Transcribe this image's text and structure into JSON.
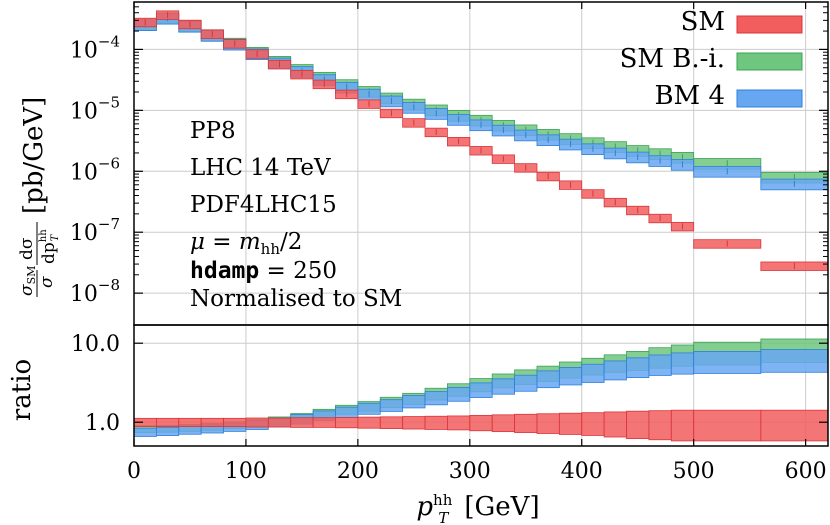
{
  "chart_data": {
    "type": "histogram-band",
    "x": {
      "label_base": "p",
      "label_sub": "T",
      "label_sup": "hh",
      "label_unit": "[GeV]",
      "lim": [
        0,
        620
      ],
      "ticks": [
        0,
        100,
        200,
        300,
        400,
        500,
        600
      ]
    },
    "bin_edges": [
      0,
      20,
      40,
      60,
      80,
      100,
      120,
      140,
      160,
      180,
      200,
      220,
      240,
      260,
      280,
      300,
      320,
      340,
      360,
      380,
      400,
      420,
      440,
      460,
      480,
      500,
      560,
      620
    ],
    "top_panel": {
      "scale": "log",
      "lim": [
        3e-09,
        0.0006
      ],
      "ylabel_prefix_num": "σ",
      "ylabel_prefix_num_sub": "SM",
      "ylabel_prefix_den": "σ",
      "ylabel_frac_num": "dσ",
      "ylabel_frac_den": "dp",
      "ylabel_frac_den_sub": "T",
      "ylabel_frac_den_sup": "hh",
      "ylabel_unit": "[pb/GeV]",
      "ticks": [
        {
          "value": 1e-08,
          "mant": "10",
          "exp": "−8"
        },
        {
          "value": 1e-07,
          "mant": "10",
          "exp": "−7"
        },
        {
          "value": 1e-06,
          "mant": "10",
          "exp": "−6"
        },
        {
          "value": 1e-05,
          "mant": "10",
          "exp": "−5"
        },
        {
          "value": 0.0001,
          "mant": "10",
          "exp": "−4"
        }
      ]
    },
    "ratio_panel": {
      "scale": "log",
      "lim": [
        0.5,
        17
      ],
      "ylabel": "ratio",
      "ticks": [
        {
          "value": 1.0,
          "label": "1.0"
        },
        {
          "value": 10.0,
          "label": "10.0"
        }
      ]
    },
    "series": [
      {
        "name": "SM",
        "color": "#f25d5d",
        "edge": "#d9353a",
        "values": [
          0.00028,
          0.00037,
          0.00026,
          0.00018,
          0.000125,
          8.5e-05,
          5.7e-05,
          3.9e-05,
          2.7e-05,
          1.85e-05,
          1.28e-05,
          9e-06,
          6.3e-06,
          4.4e-06,
          3.1e-06,
          2.2e-06,
          1.6e-06,
          1.15e-06,
          8.3e-07,
          6e-07,
          4.3e-07,
          3.1e-07,
          2.3e-07,
          1.7e-07,
          1.25e-07,
          6.5e-08,
          2.8e-08
        ],
        "rel_unc": 0.16,
        "ratio": [
          1.0,
          1.0,
          1.0,
          1.0,
          1.0,
          1.0,
          1.0,
          1.0,
          1.0,
          1.0,
          1.0,
          1.0,
          1.0,
          1.0,
          1.0,
          1.0,
          1.0,
          1.0,
          1.0,
          1.0,
          1.0,
          1.0,
          1.0,
          1.0,
          1.0,
          1.0,
          1.0
        ],
        "ratio_unc": [
          0.12,
          0.12,
          0.12,
          0.12,
          0.12,
          0.13,
          0.13,
          0.14,
          0.14,
          0.15,
          0.16,
          0.17,
          0.18,
          0.19,
          0.2,
          0.22,
          0.24,
          0.26,
          0.28,
          0.3,
          0.32,
          0.35,
          0.38,
          0.4,
          0.42,
          0.42,
          0.42
        ]
      },
      {
        "name": "SM B.-i.",
        "color": "#6fc67f",
        "edge": "#3aa356",
        "values": [
          0.000255,
          0.00033,
          0.000245,
          0.000175,
          0.000127,
          9e-05,
          6.4e-05,
          4.7e-05,
          3.5e-05,
          2.65e-05,
          2.05e-05,
          1.6e-05,
          1.27e-05,
          1.02e-05,
          8.3e-06,
          6.9e-06,
          5.7e-06,
          4.8e-06,
          4.05e-06,
          3.45e-06,
          2.95e-06,
          2.55e-06,
          2.2e-06,
          1.95e-06,
          1.7e-06,
          1.35e-06,
          8e-07
        ],
        "rel_unc": 0.2,
        "ratio": [
          0.82,
          0.83,
          0.85,
          0.88,
          0.92,
          0.97,
          1.05,
          1.15,
          1.3,
          1.45,
          1.6,
          1.8,
          2.0,
          2.3,
          2.6,
          3.0,
          3.4,
          3.8,
          4.2,
          4.7,
          5.2,
          5.7,
          6.2,
          6.8,
          7.3,
          7.8,
          8.5
        ],
        "ratio_unc": [
          0.1,
          0.1,
          0.1,
          0.1,
          0.1,
          0.11,
          0.11,
          0.12,
          0.12,
          0.13,
          0.14,
          0.15,
          0.16,
          0.17,
          0.18,
          0.19,
          0.2,
          0.21,
          0.22,
          0.23,
          0.24,
          0.25,
          0.27,
          0.29,
          0.3,
          0.32,
          0.33
        ]
      },
      {
        "name": "BM 4",
        "color": "#67a7f2",
        "edge": "#2f7fd9",
        "values": [
          0.000255,
          0.000325,
          0.00024,
          0.00017,
          0.000122,
          8.5e-05,
          6e-05,
          4.35e-05,
          3.2e-05,
          2.4e-05,
          1.85e-05,
          1.43e-05,
          1.12e-05,
          8.9e-06,
          7.1e-06,
          5.8e-06,
          4.75e-06,
          3.95e-06,
          3.3e-06,
          2.8e-06,
          2.35e-06,
          2e-06,
          1.72e-06,
          1.5e-06,
          1.3e-06,
          1e-06,
          6.2e-07
        ],
        "rel_unc": 0.2,
        "ratio": [
          0.75,
          0.77,
          0.8,
          0.83,
          0.87,
          0.93,
          1.0,
          1.1,
          1.22,
          1.35,
          1.5,
          1.65,
          1.85,
          2.05,
          2.3,
          2.6,
          2.9,
          3.2,
          3.6,
          3.95,
          4.3,
          4.7,
          5.1,
          5.5,
          5.8,
          6.0,
          6.3
        ],
        "ratio_unc": [
          0.12,
          0.12,
          0.12,
          0.12,
          0.12,
          0.13,
          0.13,
          0.14,
          0.14,
          0.15,
          0.16,
          0.17,
          0.18,
          0.19,
          0.2,
          0.21,
          0.22,
          0.23,
          0.24,
          0.25,
          0.26,
          0.27,
          0.28,
          0.29,
          0.3,
          0.31,
          0.32
        ]
      }
    ],
    "legend_position": "top-right",
    "grid": true,
    "annotations": {
      "lines": [
        "PP8",
        "LHC 14 TeV",
        "PDF4LHC15"
      ],
      "mu_symbol": "μ",
      "mu_rhs": "m",
      "mu_rhs_sub": "hh",
      "mu_rhs_div": "/2",
      "hdamp_name": "hdamp",
      "hdamp_eq": " = 250",
      "norm_line": "Normalised to SM"
    }
  }
}
